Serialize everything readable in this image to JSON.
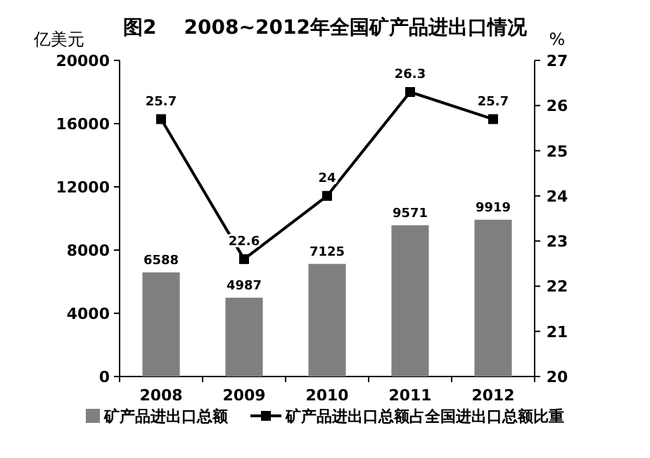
{
  "chart_data": {
    "type": "bar",
    "title": "图2    2008~2012年全国矿产品进出口情况",
    "ylabel": "亿美元",
    "y2label": "%",
    "categories": [
      "2008",
      "2009",
      "2010",
      "2011",
      "2012"
    ],
    "series": [
      {
        "name": "矿产品进出口总额",
        "color": "#7f7f7f",
        "values": [
          6588,
          4987,
          7125,
          9571,
          9919
        ]
      },
      {
        "name": "矿产品进出口总额占全国进出口总额比重",
        "type": "line",
        "axis": "y2",
        "color": "#000000",
        "values": [
          25.7,
          22.6,
          24,
          26.3,
          25.7
        ]
      }
    ],
    "ylim": [
      0,
      20000
    ],
    "yticks": [
      0,
      4000,
      8000,
      12000,
      16000,
      20000
    ],
    "y2lim": [
      20,
      27
    ],
    "y2ticks": [
      20,
      21,
      22,
      23,
      24,
      25,
      26,
      27
    ],
    "data_labels": true,
    "legend": "bottom",
    "marker": "square",
    "line_style": "solid"
  }
}
